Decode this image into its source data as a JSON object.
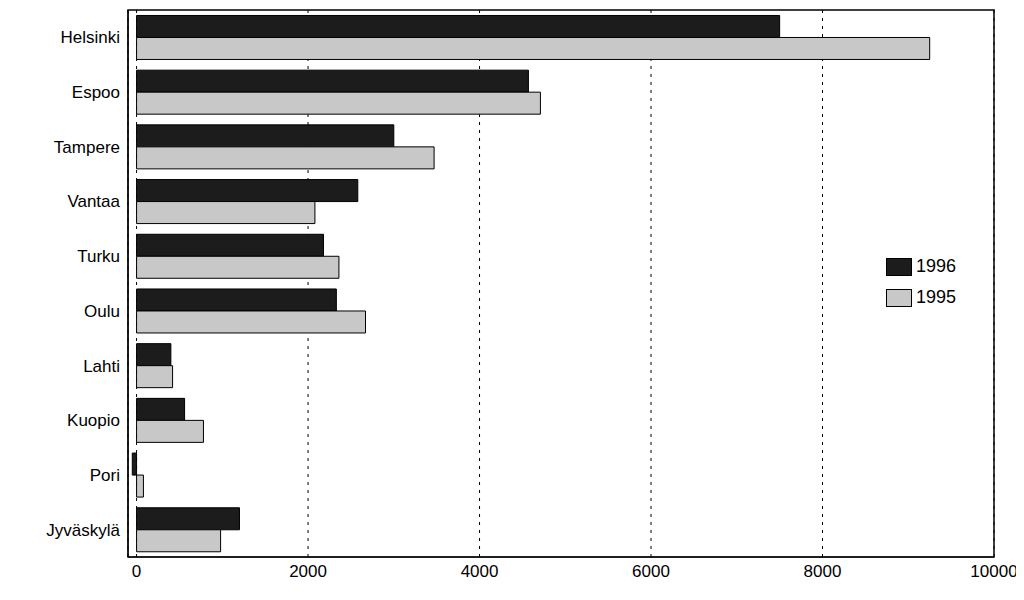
{
  "chart_data": {
    "type": "bar",
    "orientation": "horizontal",
    "categories": [
      "Helsinki",
      "Espoo",
      "Tampere",
      "Vantaa",
      "Turku",
      "Oulu",
      "Lahti",
      "Kuopio",
      "Pori",
      "Jyväskylä"
    ],
    "series": [
      {
        "name": "1996",
        "color": "#1c1c1c",
        "values": [
          7500,
          4570,
          3000,
          2580,
          2180,
          2330,
          400,
          560,
          -50,
          1200
        ]
      },
      {
        "name": "1995",
        "color": "#c8c8c8",
        "values": [
          9250,
          4710,
          3470,
          2080,
          2360,
          2670,
          420,
          780,
          80,
          980
        ]
      }
    ],
    "xlim": [
      -100,
      10000
    ],
    "xticks": [
      0,
      2000,
      4000,
      6000,
      8000,
      10000
    ],
    "grid": true,
    "legend": "right"
  }
}
